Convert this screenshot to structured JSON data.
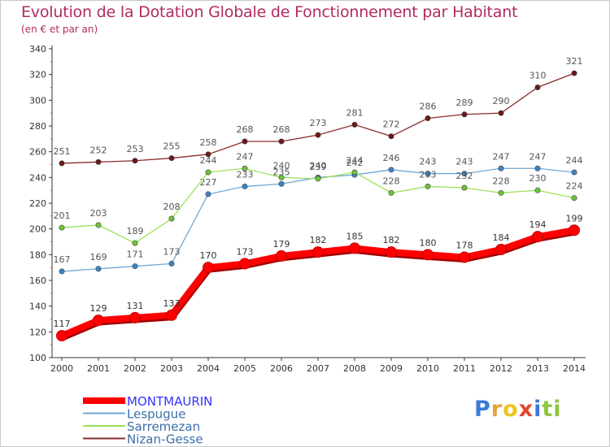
{
  "title": "Evolution de la Dotation Globale de Fonctionnement par Habitant",
  "subtitle": "(en € et par an)",
  "logo": {
    "text": "Proxiti",
    "letters": [
      {
        "ch": "P",
        "color": "#3a7bd5"
      },
      {
        "ch": "r",
        "color": "#e8a33b"
      },
      {
        "ch": "o",
        "color": "#f0c419"
      },
      {
        "ch": "x",
        "color": "#e2452f"
      },
      {
        "ch": "i",
        "color": "#3a7bd5"
      },
      {
        "ch": "t",
        "color": "#8cc63f"
      },
      {
        "ch": "i",
        "color": "#8cc63f"
      }
    ]
  },
  "chart_data": {
    "type": "line",
    "x": [
      "2000",
      "2001",
      "2002",
      "2003",
      "2004",
      "2005",
      "2006",
      "2007",
      "2008",
      "2009",
      "2010",
      "2011",
      "2012",
      "2013",
      "2014"
    ],
    "ylim": [
      100,
      340
    ],
    "yticks": [
      100,
      120,
      140,
      160,
      180,
      200,
      220,
      240,
      260,
      280,
      300,
      320,
      340
    ],
    "grid": false,
    "legend_position": "bottom-left",
    "series": [
      {
        "name": "MONTMAURIN",
        "color": "#ff0000",
        "label_color": "#333333",
        "legend_color": "#3333ff",
        "bold": true,
        "values": [
          117,
          129,
          131,
          133,
          170,
          173,
          179,
          182,
          185,
          182,
          180,
          178,
          184,
          194,
          199
        ]
      },
      {
        "name": "Lespugue",
        "color": "#6fa8d6",
        "marker": "#3a85c4",
        "label_color": "#555555",
        "values": [
          167,
          169,
          171,
          173,
          227,
          233,
          235,
          240,
          242,
          246,
          243,
          243,
          247,
          247,
          244
        ]
      },
      {
        "name": "Sarremezan",
        "color": "#9be35a",
        "marker": "#6cc33a",
        "label_color": "#555555",
        "values": [
          201,
          203,
          189,
          208,
          244,
          247,
          240,
          239,
          244,
          228,
          233,
          232,
          228,
          230,
          224
        ]
      },
      {
        "name": "Nizan-Gesse",
        "color": "#8b2c2c",
        "marker": "#6b1818",
        "label_color": "#555555",
        "values": [
          251,
          252,
          253,
          255,
          258,
          268,
          268,
          273,
          281,
          272,
          286,
          289,
          290,
          310,
          321
        ]
      }
    ]
  }
}
